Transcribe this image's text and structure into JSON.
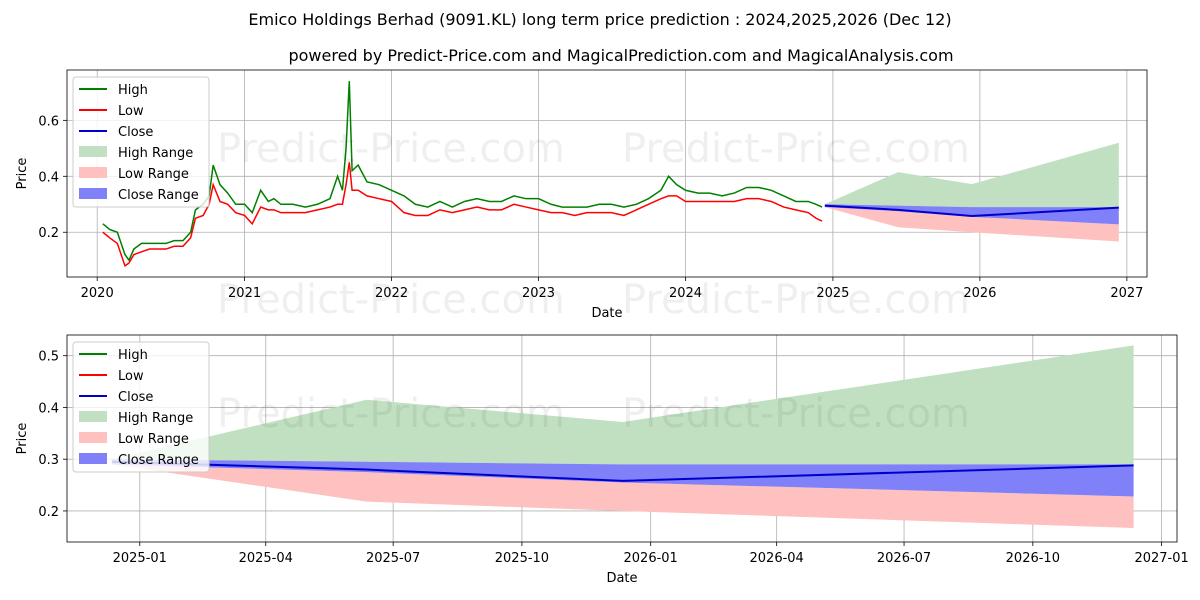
{
  "title_line1": "Emico Holdings Berhad (9091.KL) long term price prediction : 2024,2025,2026 (Dec 12)",
  "title_line2": "powered by Predict-Price.com and MagicalPrediction.com and MagicalAnalysis.com",
  "watermark_text": "Predict-Price.com",
  "colors": {
    "high": "#008000",
    "low": "#ff0000",
    "close": "#0000cd",
    "high_range": "#c1e0c1",
    "low_range": "#ffc0c0",
    "close_range": "#8080f8"
  },
  "chart_data": [
    {
      "type": "line",
      "xlabel": "Date",
      "ylabel": "Price",
      "xlim": [
        "2019-10-18",
        "2027-02-20"
      ],
      "ylim": [
        0.04,
        0.78
      ],
      "x_ticks": [
        "2020",
        "2021",
        "2022",
        "2023",
        "2024",
        "2025",
        "2026",
        "2027"
      ],
      "y_ticks": [
        "0.2",
        "0.4",
        "0.6"
      ],
      "grid": true,
      "legend_position": "upper left",
      "legend": [
        "High",
        "Low",
        "Close",
        "High Range",
        "Low Range",
        "Close Range"
      ],
      "history": {
        "dates": [
          "2020-01-15",
          "2020-02-01",
          "2020-02-20",
          "2020-03-10",
          "2020-03-20",
          "2020-04-01",
          "2020-04-20",
          "2020-05-10",
          "2020-06-01",
          "2020-06-20",
          "2020-07-10",
          "2020-08-01",
          "2020-08-20",
          "2020-09-01",
          "2020-09-20",
          "2020-10-05",
          "2020-10-15",
          "2020-11-01",
          "2020-11-20",
          "2020-12-10",
          "2021-01-01",
          "2021-01-20",
          "2021-02-10",
          "2021-03-01",
          "2021-03-15",
          "2021-04-01",
          "2021-05-01",
          "2021-06-01",
          "2021-07-01",
          "2021-08-01",
          "2021-08-20",
          "2021-09-01",
          "2021-09-10",
          "2021-09-18",
          "2021-09-25",
          "2021-10-10",
          "2021-11-01",
          "2021-12-01",
          "2022-01-01",
          "2022-02-01",
          "2022-03-01",
          "2022-04-01",
          "2022-05-01",
          "2022-06-01",
          "2022-07-01",
          "2022-08-01",
          "2022-09-01",
          "2022-10-01",
          "2022-11-01",
          "2022-12-01",
          "2023-01-01",
          "2023-02-01",
          "2023-03-01",
          "2023-04-01",
          "2023-05-01",
          "2023-06-01",
          "2023-07-01",
          "2023-08-01",
          "2023-09-01",
          "2023-10-01",
          "2023-11-01",
          "2023-11-20",
          "2023-12-10",
          "2024-01-01",
          "2024-02-01",
          "2024-03-01",
          "2024-04-01",
          "2024-05-01",
          "2024-06-01",
          "2024-07-01",
          "2024-08-01",
          "2024-09-01",
          "2024-10-01",
          "2024-11-01",
          "2024-11-20",
          "2024-12-05"
        ],
        "high": [
          0.23,
          0.21,
          0.2,
          0.12,
          0.1,
          0.14,
          0.16,
          0.16,
          0.16,
          0.16,
          0.17,
          0.17,
          0.2,
          0.28,
          0.3,
          0.33,
          0.44,
          0.37,
          0.34,
          0.3,
          0.3,
          0.27,
          0.35,
          0.31,
          0.32,
          0.3,
          0.3,
          0.29,
          0.3,
          0.32,
          0.4,
          0.35,
          0.5,
          0.74,
          0.42,
          0.44,
          0.38,
          0.37,
          0.35,
          0.33,
          0.3,
          0.29,
          0.31,
          0.29,
          0.31,
          0.32,
          0.31,
          0.31,
          0.33,
          0.32,
          0.32,
          0.3,
          0.29,
          0.29,
          0.29,
          0.3,
          0.3,
          0.29,
          0.3,
          0.32,
          0.35,
          0.4,
          0.37,
          0.35,
          0.34,
          0.34,
          0.33,
          0.34,
          0.36,
          0.36,
          0.35,
          0.33,
          0.31,
          0.31,
          0.3,
          0.29
        ],
        "low": [
          0.2,
          0.18,
          0.16,
          0.08,
          0.09,
          0.12,
          0.13,
          0.14,
          0.14,
          0.14,
          0.15,
          0.15,
          0.18,
          0.25,
          0.26,
          0.3,
          0.37,
          0.31,
          0.3,
          0.27,
          0.26,
          0.23,
          0.29,
          0.28,
          0.28,
          0.27,
          0.27,
          0.27,
          0.28,
          0.29,
          0.3,
          0.3,
          0.37,
          0.45,
          0.35,
          0.35,
          0.33,
          0.32,
          0.31,
          0.27,
          0.26,
          0.26,
          0.28,
          0.27,
          0.28,
          0.29,
          0.28,
          0.28,
          0.3,
          0.29,
          0.28,
          0.27,
          0.27,
          0.26,
          0.27,
          0.27,
          0.27,
          0.26,
          0.28,
          0.3,
          0.32,
          0.33,
          0.33,
          0.31,
          0.31,
          0.31,
          0.31,
          0.31,
          0.32,
          0.32,
          0.31,
          0.29,
          0.28,
          0.27,
          0.25,
          0.24
        ]
      },
      "forecast": {
        "dates": [
          "2024-12-12",
          "2025-06-12",
          "2025-12-12",
          "2026-12-12"
        ],
        "close": [
          0.295,
          0.28,
          0.258,
          0.288
        ],
        "high_range_upper": [
          0.3,
          0.415,
          0.372,
          0.52
        ],
        "low_range_lower": [
          0.29,
          0.218,
          0.2,
          0.167
        ],
        "close_range_upper": [
          0.3,
          0.295,
          0.29,
          0.29
        ],
        "close_range_lower": [
          0.29,
          0.275,
          0.255,
          0.228
        ]
      }
    },
    {
      "type": "line",
      "xlabel": "Date",
      "ylabel": "Price",
      "xlim": [
        "2024-11-10",
        "2027-01-12"
      ],
      "ylim": [
        0.14,
        0.54
      ],
      "x_ticks": [
        "2025-01",
        "2025-04",
        "2025-07",
        "2025-10",
        "2026-01",
        "2026-04",
        "2026-07",
        "2026-10",
        "2027-01"
      ],
      "y_ticks": [
        "0.2",
        "0.3",
        "0.4",
        "0.5"
      ],
      "grid": true,
      "legend_position": "upper left",
      "legend": [
        "High",
        "Low",
        "Close",
        "High Range",
        "Low Range",
        "Close Range"
      ],
      "forecast": {
        "dates": [
          "2024-12-12",
          "2025-06-12",
          "2025-12-12",
          "2026-12-12"
        ],
        "close": [
          0.295,
          0.28,
          0.258,
          0.288
        ],
        "high_range_upper": [
          0.3,
          0.415,
          0.372,
          0.52
        ],
        "low_range_lower": [
          0.29,
          0.218,
          0.2,
          0.167
        ],
        "close_range_upper": [
          0.3,
          0.295,
          0.29,
          0.29
        ],
        "close_range_lower": [
          0.29,
          0.275,
          0.255,
          0.228
        ]
      }
    }
  ]
}
